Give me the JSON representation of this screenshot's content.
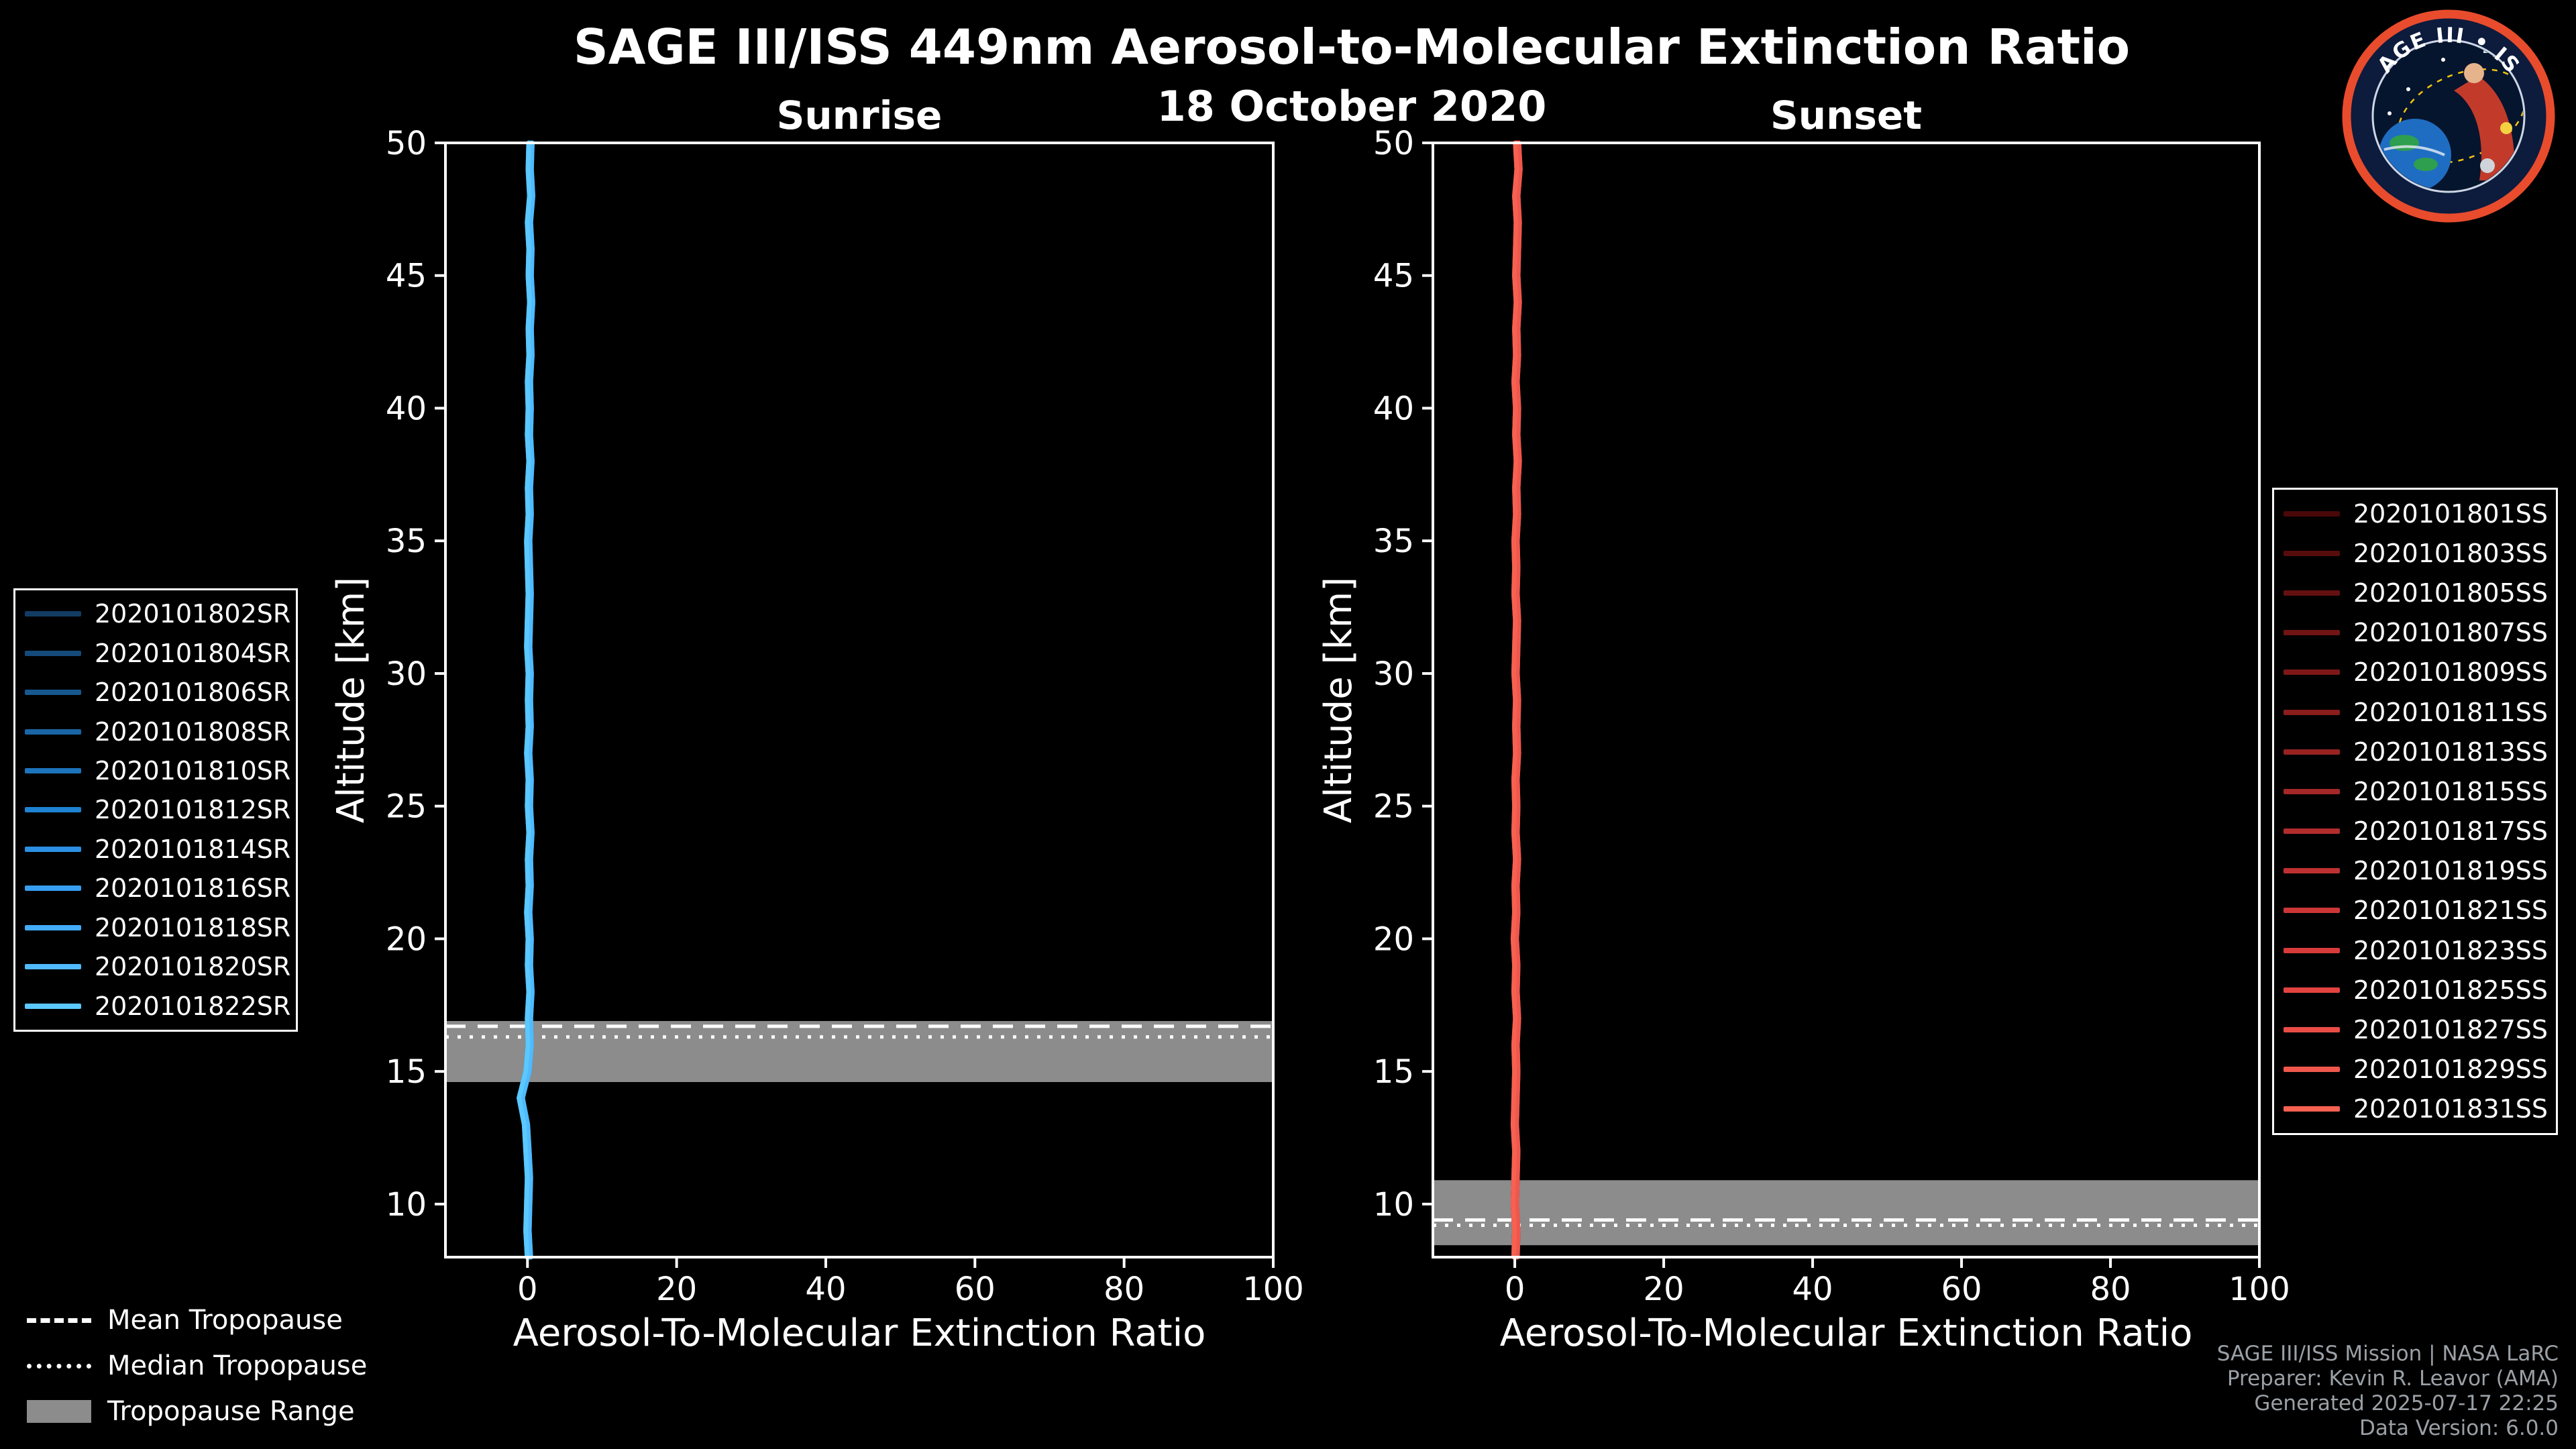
{
  "figure": {
    "title": "SAGE III/ISS 449nm Aerosol-to-Molecular Extinction Ratio",
    "date": "18 October 2020"
  },
  "logo": {
    "text": "SAGE III • ISS"
  },
  "credits": {
    "lines": [
      "SAGE III/ISS Mission | NASA LaRC",
      "Preparer: Kevin R. Leavor (AMA)",
      "Generated 2025-07-17 22:25",
      "Data Version: 6.0.0"
    ]
  },
  "tropopause_legend": {
    "mean": "Mean Tropopause",
    "median": "Median Tropopause",
    "range": "Tropopause Range",
    "band_color": "#8c8c8c"
  },
  "chart_data": [
    {
      "type": "line",
      "title": "Sunrise",
      "xlabel": "Aerosol-To-Molecular Extinction Ratio",
      "ylabel": "Altitude [km]",
      "xlim": [
        -11,
        100
      ],
      "ylim": [
        8,
        50
      ],
      "xticks": [
        0,
        20,
        40,
        60,
        80,
        100
      ],
      "yticks": [
        10,
        15,
        20,
        25,
        30,
        35,
        40,
        45,
        50
      ],
      "grid": false,
      "tropopause": {
        "mean": 16.7,
        "median": 16.3,
        "range": [
          14.6,
          16.9
        ]
      },
      "profile": {
        "altitude": [
          8,
          9,
          10,
          11,
          12,
          13,
          14,
          15,
          16,
          17,
          18,
          19,
          20,
          21,
          22,
          23,
          24,
          25,
          26,
          27,
          28,
          29,
          30,
          31,
          32,
          33,
          34,
          35,
          36,
          37,
          38,
          39,
          40,
          41,
          42,
          43,
          44,
          45,
          46,
          47,
          48,
          49,
          50
        ],
        "ratio": [
          0.2,
          0.0,
          0.1,
          0.2,
          0.0,
          -0.2,
          -0.9,
          0.0,
          0.3,
          0.2,
          0.4,
          0.2,
          0.3,
          0.1,
          0.3,
          0.2,
          0.4,
          0.2,
          0.3,
          0.1,
          0.3,
          0.2,
          0.3,
          0.1,
          0.2,
          0.3,
          0.2,
          0.1,
          0.3,
          0.2,
          0.4,
          0.2,
          0.3,
          0.2,
          0.4,
          0.3,
          0.5,
          0.3,
          0.4,
          0.2,
          0.5,
          0.3,
          0.4
        ]
      },
      "series": [
        {
          "name": "2020101802SR",
          "color": "#123c63"
        },
        {
          "name": "2020101804SR",
          "color": "#144a7c"
        },
        {
          "name": "2020101806SR",
          "color": "#175890"
        },
        {
          "name": "2020101808SR",
          "color": "#1966a6"
        },
        {
          "name": "2020101810SR",
          "color": "#1c74bc"
        },
        {
          "name": "2020101812SR",
          "color": "#1f82d2"
        },
        {
          "name": "2020101814SR",
          "color": "#2b90e4"
        },
        {
          "name": "2020101816SR",
          "color": "#379ef0"
        },
        {
          "name": "2020101818SR",
          "color": "#43acf8"
        },
        {
          "name": "2020101820SR",
          "color": "#4fbafd"
        },
        {
          "name": "2020101822SR",
          "color": "#5bc8ff"
        }
      ]
    },
    {
      "type": "line",
      "title": "Sunset",
      "xlabel": "Aerosol-To-Molecular Extinction Ratio",
      "ylabel": "Altitude [km]",
      "xlim": [
        -11,
        100
      ],
      "ylim": [
        8,
        50
      ],
      "xticks": [
        0,
        20,
        40,
        60,
        80,
        100
      ],
      "yticks": [
        10,
        15,
        20,
        25,
        30,
        35,
        40,
        45,
        50
      ],
      "grid": false,
      "tropopause": {
        "mean": 9.4,
        "median": 9.2,
        "range": [
          8.45,
          10.9
        ]
      },
      "profile": {
        "altitude": [
          8,
          9,
          10,
          11,
          12,
          13,
          14,
          15,
          16,
          17,
          18,
          19,
          20,
          21,
          22,
          23,
          24,
          25,
          26,
          27,
          28,
          29,
          30,
          31,
          32,
          33,
          34,
          35,
          36,
          37,
          38,
          39,
          40,
          41,
          42,
          43,
          44,
          45,
          46,
          47,
          48,
          49,
          50
        ],
        "ratio": [
          0.1,
          0.2,
          0.0,
          0.1,
          0.2,
          0.0,
          0.1,
          0.2,
          0.1,
          0.3,
          0.1,
          0.2,
          0.0,
          0.2,
          0.1,
          0.3,
          0.1,
          0.2,
          0.1,
          0.3,
          0.2,
          0.3,
          0.1,
          0.2,
          0.3,
          0.1,
          0.2,
          0.1,
          0.3,
          0.2,
          0.4,
          0.2,
          0.3,
          0.1,
          0.3,
          0.2,
          0.4,
          0.2,
          0.3,
          0.4,
          0.2,
          0.5,
          0.3
        ]
      },
      "series": [
        {
          "name": "2020101801SS",
          "color": "#4a0808"
        },
        {
          "name": "2020101803SS",
          "color": "#570c0c"
        },
        {
          "name": "2020101805SS",
          "color": "#641010"
        },
        {
          "name": "2020101807SS",
          "color": "#711414"
        },
        {
          "name": "2020101809SS",
          "color": "#7e1818"
        },
        {
          "name": "2020101811SS",
          "color": "#8b1d1d"
        },
        {
          "name": "2020101813SS",
          "color": "#982222"
        },
        {
          "name": "2020101815SS",
          "color": "#a52727"
        },
        {
          "name": "2020101817SS",
          "color": "#b22c2c"
        },
        {
          "name": "2020101819SS",
          "color": "#bf3131"
        },
        {
          "name": "2020101821SS",
          "color": "#cc3636"
        },
        {
          "name": "2020101823SS",
          "color": "#d93b3b"
        },
        {
          "name": "2020101825SS",
          "color": "#e24341"
        },
        {
          "name": "2020101827SS",
          "color": "#e94d46"
        },
        {
          "name": "2020101829SS",
          "color": "#f0574c"
        },
        {
          "name": "2020101831SS",
          "color": "#f66152"
        }
      ]
    }
  ]
}
